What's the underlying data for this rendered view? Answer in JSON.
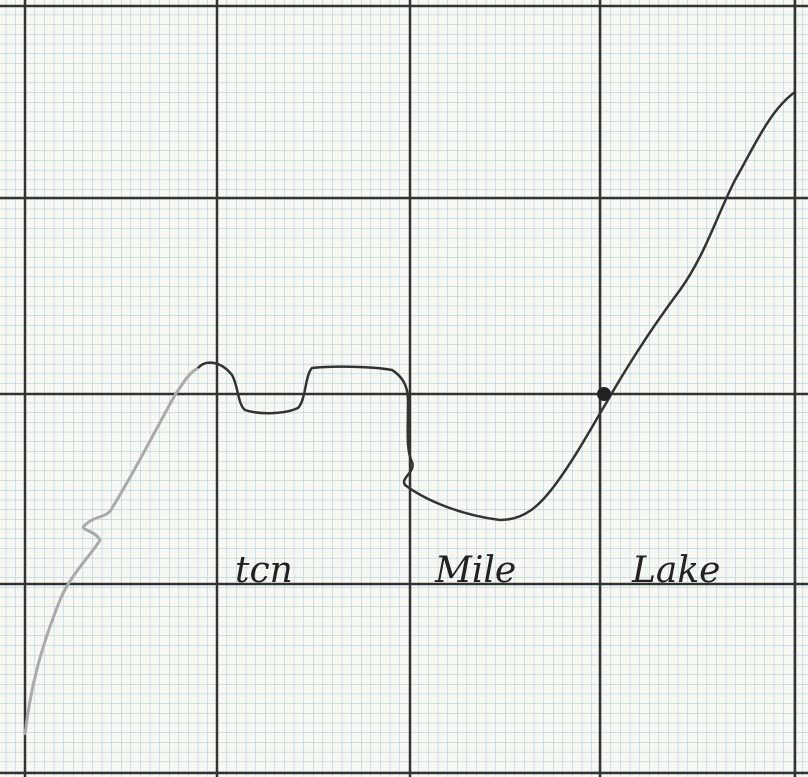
{
  "map": {
    "labels": [
      "tcn",
      "Mile",
      "Lake"
    ]
  }
}
